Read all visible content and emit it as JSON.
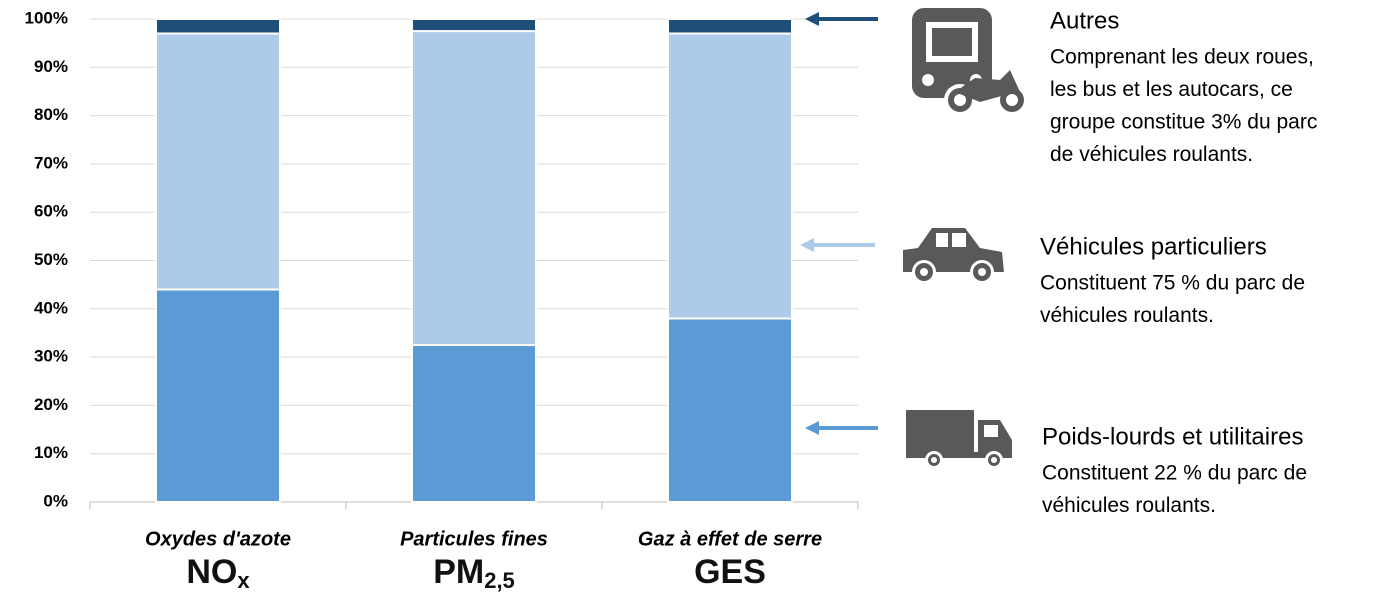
{
  "chart_data": {
    "type": "stacked_bar",
    "categories": [
      "Oxydes d'azote",
      "Particules fines",
      "Gaz à effet de serre"
    ],
    "category_codes": [
      {
        "main": "NO",
        "sub": "x"
      },
      {
        "main": "PM",
        "sub": "2,5"
      },
      {
        "main": "GES"
      }
    ],
    "series": [
      {
        "name": "Poids-lourds et utilitaires",
        "color": "#5b9bd5",
        "values": [
          44,
          32.5,
          38
        ],
        "description": [
          "Constituent 22 % du parc de",
          "véhicules roulants."
        ]
      },
      {
        "name": "Véhicules particuliers",
        "color": "#adcbe9",
        "values": [
          53,
          65,
          59
        ],
        "description": [
          "Constituent 75 % du parc de",
          "véhicules roulants."
        ]
      },
      {
        "name": "Autres",
        "color": "#1f4e79",
        "values": [
          3,
          2.5,
          3
        ],
        "description": [
          "Comprenant les deux roues,",
          "les bus et les autocars, ce",
          "groupe constitue 3% du parc",
          "de véhicules roulants."
        ]
      }
    ],
    "ylim": [
      0,
      100
    ],
    "yticks": [
      {
        "value": 0,
        "label": "0%"
      },
      {
        "value": 10,
        "label": "10%"
      },
      {
        "value": 20,
        "label": "20%"
      },
      {
        "value": 30,
        "label": "30%"
      },
      {
        "value": 40,
        "label": "40%"
      },
      {
        "value": 50,
        "label": "50%"
      },
      {
        "value": 60,
        "label": "60%"
      },
      {
        "value": 70,
        "label": "70%"
      },
      {
        "value": 80,
        "label": "80%"
      },
      {
        "value": 90,
        "label": "90%"
      },
      {
        "value": 100,
        "label": "100%"
      }
    ],
    "grid": true
  }
}
